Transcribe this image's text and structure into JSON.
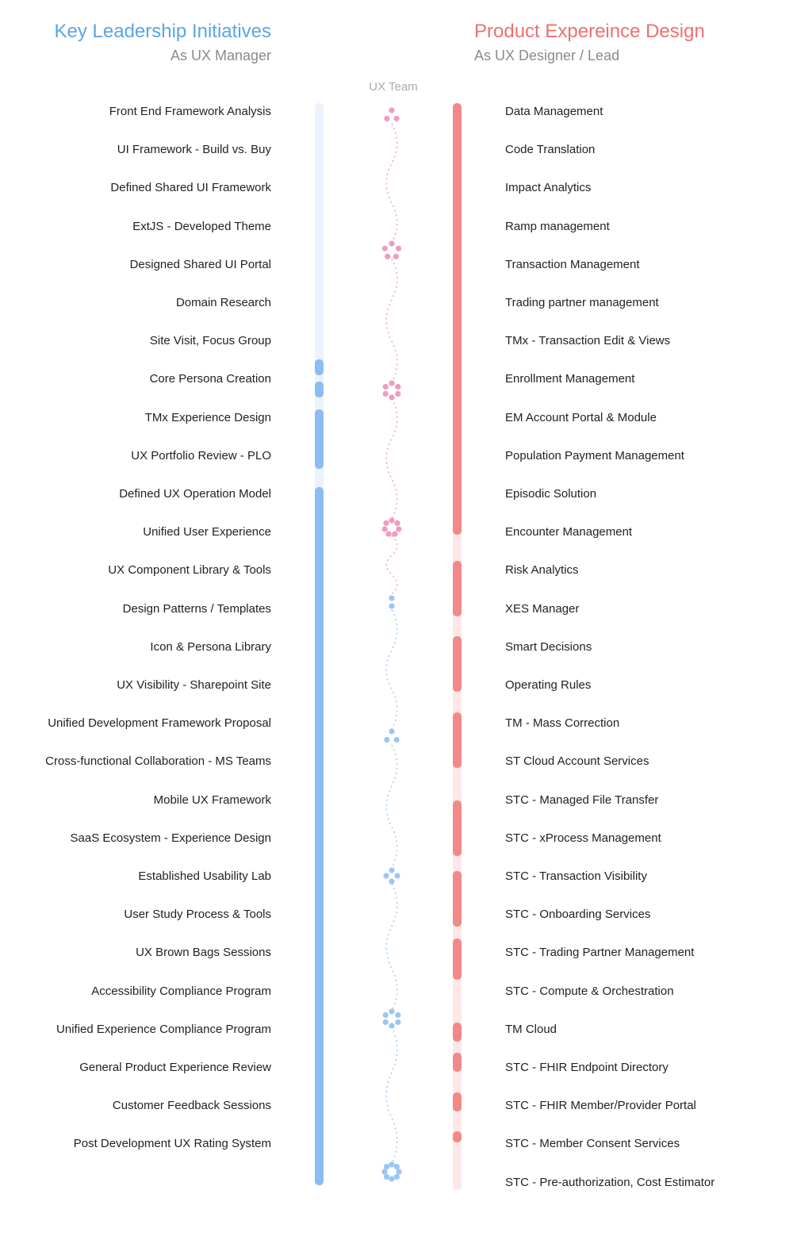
{
  "left_header": {
    "title": "Key Leadership Initiatives",
    "subtitle": "As UX Manager"
  },
  "right_header": {
    "title": "Product Expereince Design",
    "subtitle": "As UX Designer / Lead"
  },
  "center_label": "UX Team",
  "colors": {
    "blue": "#8cbdf0",
    "blue_light": "#eaf3fd",
    "red": "#f28989",
    "red_light": "#fde7e7",
    "pink_dot": "#ee9cc0",
    "blue_dot": "#9cc6f2"
  },
  "left_items": [
    "Front End Framework Analysis",
    "UI Framework - Build vs. Buy",
    "Defined Shared UI Framework",
    "ExtJS - Developed Theme",
    "Designed Shared UI Portal",
    "Domain Research",
    "Site Visit, Focus Group",
    "Core Persona  Creation",
    "TMx Experience Design",
    "UX Portfolio Review - PLO",
    "Defined UX Operation Model",
    "Unified User Experience",
    "UX Component Library & Tools",
    "Design Patterns / Templates",
    "Icon & Persona Library",
    "UX Visibility - Sharepoint Site",
    "Unified Development Framework Proposal",
    "Cross-functional Collaboration - MS Teams",
    "Mobile UX Framework",
    "SaaS Ecosystem - Experience Design",
    "Established Usability Lab",
    "User Study Process & Tools",
    "UX Brown Bags Sessions",
    "Accessibility Compliance Program",
    "Unified Experience Compliance Program",
    "General Product Experience Review",
    "Customer Feedback Sessions",
    "Post Development UX Rating System"
  ],
  "right_items": [
    "Data Management",
    "Code Translation",
    "Impact Analytics",
    "Ramp management",
    "Transaction Management",
    "Trading partner management",
    "TMx - Transaction Edit & Views",
    "Enrollment Management",
    "EM Account Portal & Module",
    "Population Payment Management",
    "Episodic Solution",
    "Encounter Management",
    "Risk Analytics",
    "XES Manager",
    "Smart Decisions",
    "Operating Rules",
    "TM - Mass Correction",
    "ST Cloud Account Services",
    "STC - Managed File Transfer",
    "STC - xProcess Management",
    "STC - Transaction Visibility",
    "STC - Onboarding Services",
    "STC - Trading Partner Management",
    "STC - Compute & Orchestration",
    "TM Cloud",
    "STC - FHIR Endpoint Directory",
    "STC - FHIR Member/Provider Portal",
    "STC - Member Consent Services",
    "STC - Pre-authorization, Cost Estimator"
  ],
  "team_clusters": [
    {
      "color": "pink",
      "members": 3
    },
    {
      "color": "pink",
      "members": 5
    },
    {
      "color": "pink",
      "members": 6
    },
    {
      "color": "pink",
      "members": 7
    },
    {
      "color": "blue",
      "members": 2
    },
    {
      "color": "blue",
      "members": 3
    },
    {
      "color": "blue",
      "members": 4
    },
    {
      "color": "blue",
      "members": 6
    },
    {
      "color": "blue",
      "members": 8
    }
  ]
}
